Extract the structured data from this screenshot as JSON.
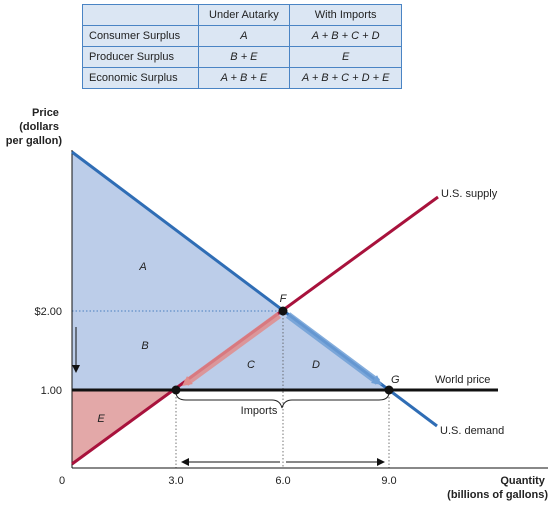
{
  "table": {
    "headers": [
      "",
      "Under Autarky",
      "With Imports"
    ],
    "rows": [
      {
        "label": "Consumer Surplus",
        "autarky": "A",
        "imports": "A + B + C + D"
      },
      {
        "label": "Producer Surplus",
        "autarky": "B + E",
        "imports": "E"
      },
      {
        "label": "Economic Surplus",
        "autarky": "A + B + E",
        "imports": "A + B + C + D + E"
      }
    ]
  },
  "axes": {
    "y_label_lines": [
      "Price",
      "(dollars",
      "per gallon)"
    ],
    "x_label_lines": [
      "Quantity",
      "(billions of gallons)"
    ],
    "y_ticks": [
      "$2.00",
      "1.00"
    ],
    "x_ticks": [
      "0",
      "3.0",
      "6.0",
      "9.0"
    ]
  },
  "curves": {
    "supply_label": "U.S. supply",
    "demand_label": "U.S. demand",
    "world_price_label": "World price"
  },
  "regions": {
    "a": "A",
    "b": "B",
    "c": "C",
    "d": "D",
    "e": "E"
  },
  "points": {
    "f": "F",
    "g": "G"
  },
  "annotations": {
    "imports": "Imports"
  },
  "colors": {
    "consumer_surplus": "#bccde9",
    "producer_surplus": "#e3a8a8",
    "supply": "#a8123c",
    "demand": "#2f6db5",
    "world_price": "#111111",
    "arrow_c": "#e08c8c",
    "arrow_d": "#6e9fd6"
  }
}
